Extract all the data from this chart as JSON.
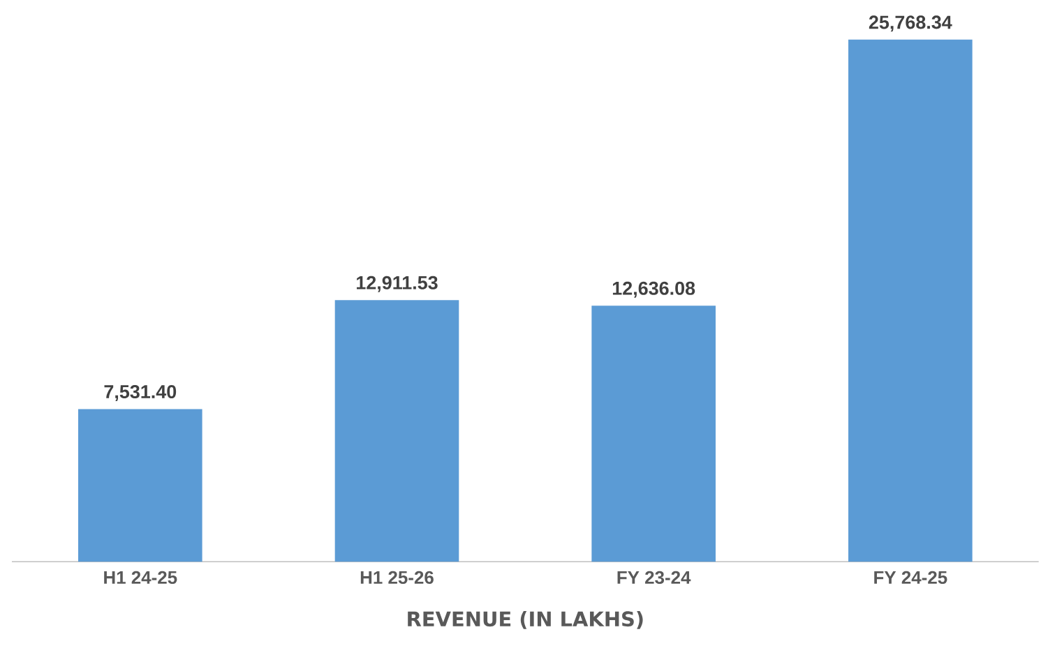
{
  "chart_data": {
    "type": "bar",
    "xlabel": "REVENUE (IN LAKHS)",
    "categories": [
      "H1 24-25",
      "H1 25-26",
      "FY 23-24",
      "FY 24-25"
    ],
    "values": [
      7531.4,
      12911.53,
      12636.08,
      25768.34
    ],
    "value_labels": [
      "7,531.40",
      "12,911.53",
      "12,636.08",
      "25,768.34"
    ],
    "color": "#5b9bd5"
  }
}
